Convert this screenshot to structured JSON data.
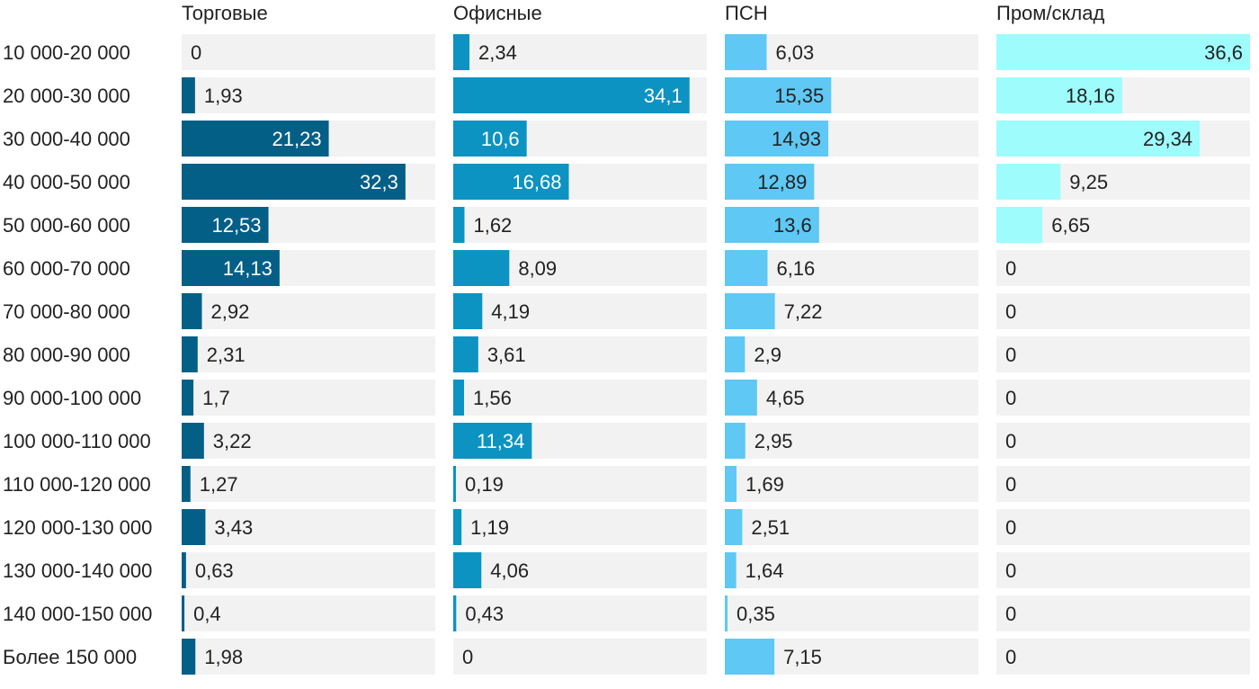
{
  "chart_data": {
    "type": "bar",
    "orientation": "horizontal",
    "layout": "small-multiples",
    "categories": [
      "10 000-20 000",
      "20 000-30 000",
      "30 000-40 000",
      "40 000-50 000",
      "50 000-60 000",
      "60 000-70 000",
      "70 000-80 000",
      "80 000-90 000",
      "90 000-100 000",
      "100 000-110 000",
      "110 000-120 000",
      "120 000-130 000",
      "130 000-140 000",
      "140 000-150 000",
      "Более 150 000"
    ],
    "series": [
      {
        "name": "Торговые",
        "color": "#045f87",
        "values": [
          0,
          1.93,
          21.23,
          32.3,
          12.53,
          14.13,
          2.92,
          2.31,
          1.7,
          3.22,
          1.27,
          3.43,
          0.63,
          0.4,
          1.98
        ],
        "labels": [
          "0",
          "1,93",
          "21,23",
          "32,3",
          "12,53",
          "14,13",
          "2,92",
          "2,31",
          "1,7",
          "3,22",
          "1,27",
          "3,43",
          "0,63",
          "0,4",
          "1,98"
        ]
      },
      {
        "name": "Офисные",
        "color": "#0c93c1",
        "values": [
          2.34,
          34.1,
          10.6,
          16.68,
          1.62,
          8.09,
          4.19,
          3.61,
          1.56,
          11.34,
          0.19,
          1.19,
          4.06,
          0.43,
          0
        ],
        "labels": [
          "2,34",
          "34,1",
          "10,6",
          "16,68",
          "1,62",
          "8,09",
          "4,19",
          "3,61",
          "1,56",
          "11,34",
          "0,19",
          "1,19",
          "4,06",
          "0,43",
          "0"
        ]
      },
      {
        "name": "ПСН",
        "color": "#5fc8f4",
        "values": [
          6.03,
          15.35,
          14.93,
          12.89,
          13.6,
          6.16,
          7.22,
          2.9,
          4.65,
          2.95,
          1.69,
          2.51,
          1.64,
          0.35,
          7.15
        ],
        "labels": [
          "6,03",
          "15,35",
          "14,93",
          "12,89",
          "13,6",
          "6,16",
          "7,22",
          "2,9",
          "4,65",
          "2,95",
          "1,69",
          "2,51",
          "1,64",
          "0,35",
          "7,15"
        ]
      },
      {
        "name": "Пром/склад",
        "color": "#9ffcfc",
        "values": [
          36.6,
          18.16,
          29.34,
          9.25,
          6.65,
          0,
          0,
          0,
          0,
          0,
          0,
          0,
          0,
          0,
          0
        ],
        "labels": [
          "36,6",
          "18,16",
          "29,34",
          "9,25",
          "6,65",
          "0",
          "0",
          "0",
          "0",
          "0",
          "0",
          "0",
          "0",
          "0",
          "0"
        ]
      }
    ],
    "title": "",
    "xlabel": "",
    "ylabel": "",
    "grid": false,
    "legend": "none",
    "track_color": "#f2f2f2"
  }
}
